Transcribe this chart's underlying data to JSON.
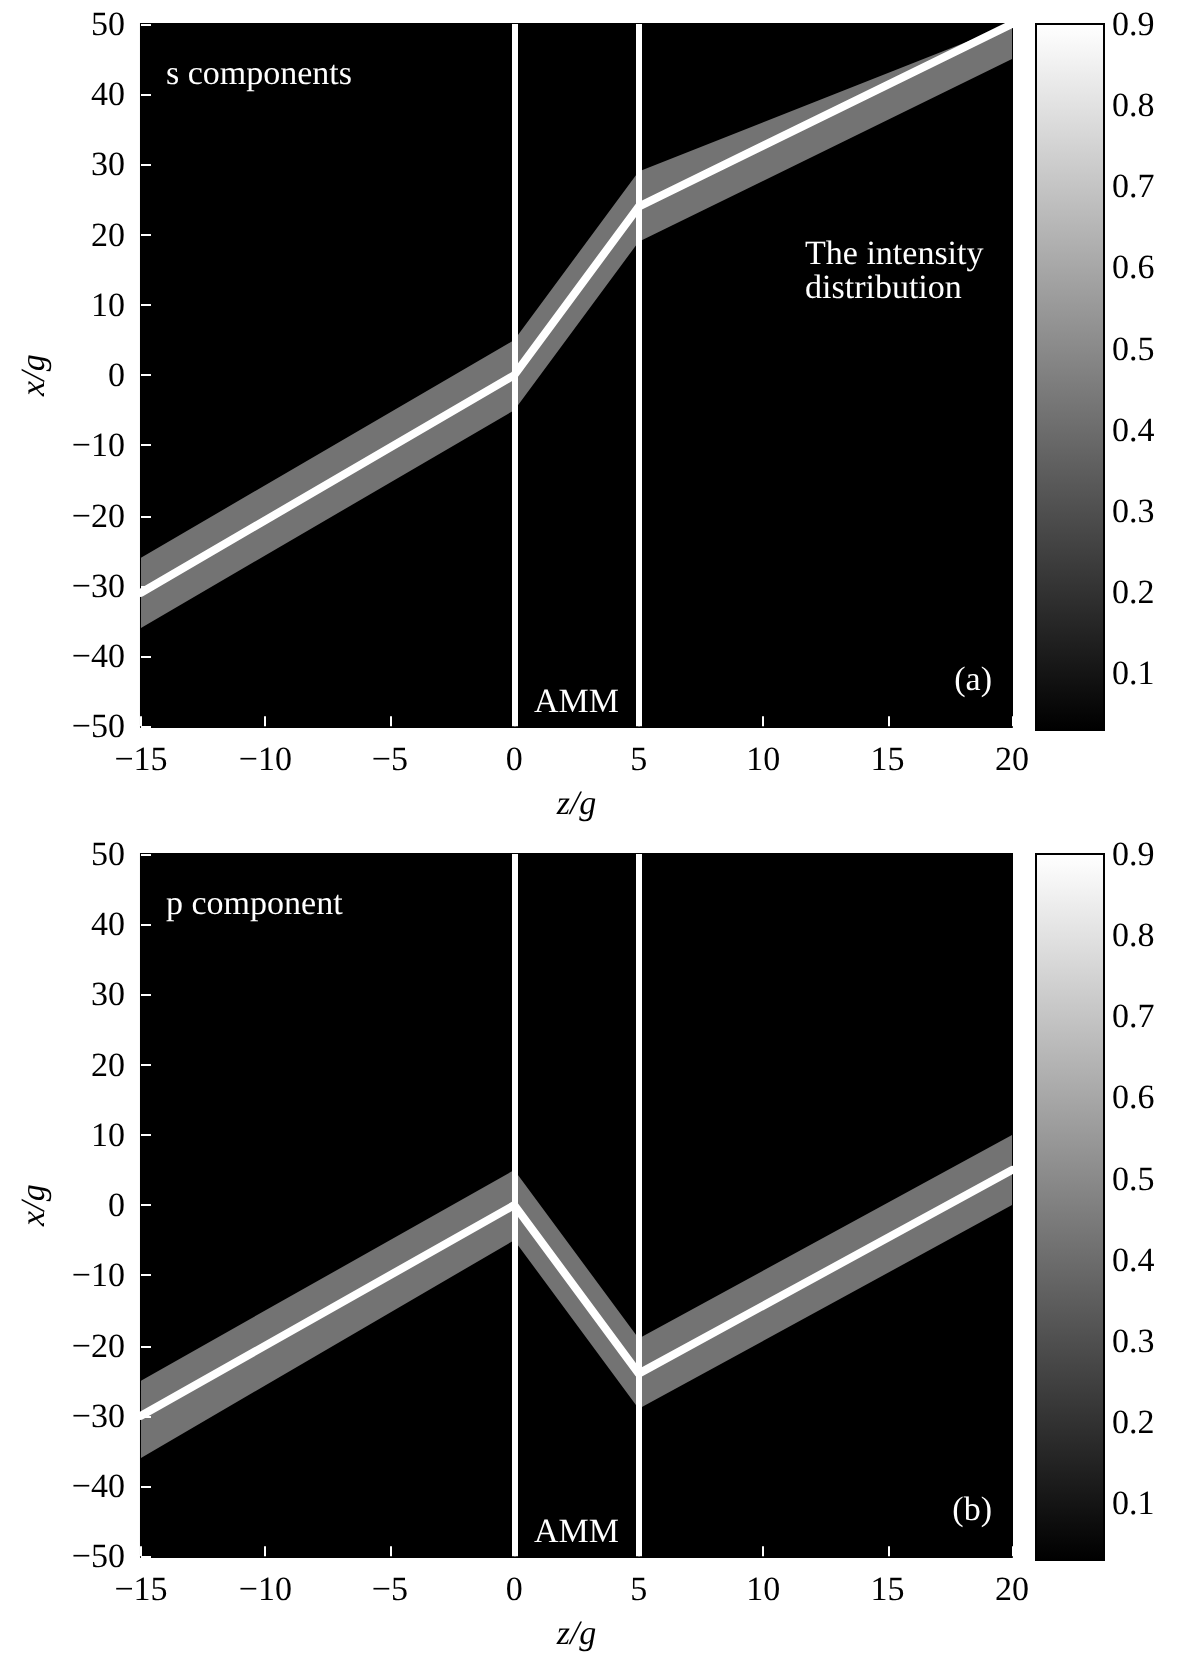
{
  "chart_data": [
    {
      "type": "line",
      "xlabel": "z/g",
      "ylabel": "x/g",
      "xlim": [
        -15,
        20
      ],
      "xticks": [
        -15,
        -10,
        -5,
        0,
        5,
        10,
        15,
        20
      ],
      "ylim": [
        -50,
        50
      ],
      "yticks": [
        -50,
        -40,
        -30,
        -20,
        -10,
        0,
        10,
        20,
        30,
        40,
        50
      ],
      "series": [
        {
          "color": "#ffffff",
          "x": [
            -15,
            0,
            5,
            20
          ],
          "values": [
            -31,
            0,
            24,
            50
          ],
          "lower": [
            -36,
            -5,
            19,
            45
          ],
          "upper": [
            -26,
            5,
            29,
            50
          ]
        }
      ],
      "ref_lines": [
        {
          "axis": "x",
          "value": 0,
          "color": "#ffffff"
        },
        {
          "axis": "x",
          "value": 5,
          "color": "#ffffff"
        }
      ],
      "bands": [
        {
          "axis": "x",
          "from": 0,
          "to": 5,
          "label": "AMM",
          "color": "#000000"
        }
      ],
      "annotations": [
        "s components",
        "The intensity distribution",
        "(a)"
      ],
      "clim": [
        0.03,
        0.9
      ],
      "cticks": [
        0.1,
        0.2,
        0.3,
        0.4,
        0.5,
        0.6,
        0.7,
        0.8,
        0.9
      ]
    },
    {
      "type": "line",
      "xlabel": "z/g",
      "ylabel": "x/g",
      "xlim": [
        -15,
        20
      ],
      "xticks": [
        -15,
        -10,
        -5,
        0,
        5,
        10,
        15,
        20
      ],
      "ylim": [
        -50,
        50
      ],
      "yticks": [
        -50,
        -40,
        -30,
        -20,
        -10,
        0,
        10,
        20,
        30,
        40,
        50
      ],
      "series": [
        {
          "color": "#ffffff",
          "x": [
            -15,
            0,
            5,
            20
          ],
          "values": [
            -30,
            0,
            -24,
            5
          ],
          "lower": [
            -36,
            -5,
            -29,
            0
          ],
          "upper": [
            -25,
            5,
            -19,
            10
          ]
        }
      ],
      "ref_lines": [
        {
          "axis": "x",
          "value": 0,
          "color": "#ffffff"
        },
        {
          "axis": "x",
          "value": 5,
          "color": "#ffffff"
        }
      ],
      "bands": [
        {
          "axis": "x",
          "from": 0,
          "to": 5,
          "label": "AMM",
          "color": "#000000"
        }
      ],
      "annotations": [
        "p component",
        "(b)"
      ],
      "clim": [
        0.03,
        0.9
      ],
      "cticks": [
        0.1,
        0.2,
        0.3,
        0.4,
        0.5,
        0.6,
        0.7,
        0.8,
        0.9
      ]
    }
  ]
}
